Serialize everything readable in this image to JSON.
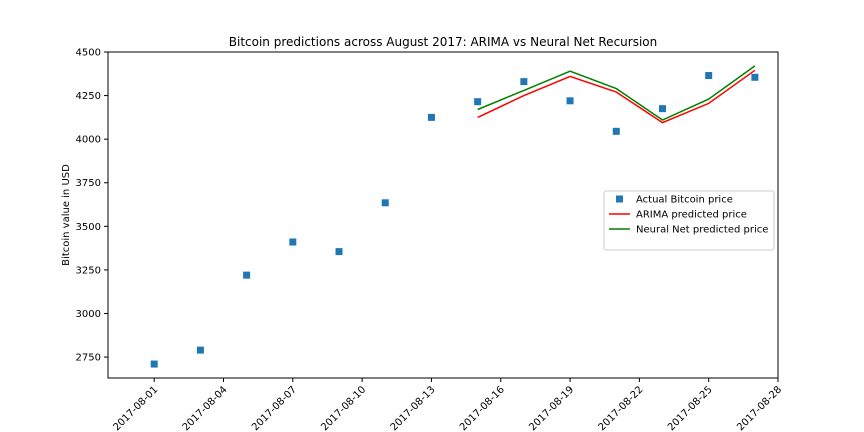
{
  "chart_data": {
    "type": "line",
    "title": "Bitcoin predictions across August 2017: ARIMA vs Neural Net Recursion",
    "xlabel": "",
    "ylabel": "Bitcoin value in USD",
    "xlim": [
      "2017-07-30",
      "2017-08-28"
    ],
    "ylim": [
      2630,
      4500
    ],
    "x_ticks": [
      "2017-08-01",
      "2017-08-04",
      "2017-08-07",
      "2017-08-10",
      "2017-08-13",
      "2017-08-16",
      "2017-08-19",
      "2017-08-22",
      "2017-08-25",
      "2017-08-28"
    ],
    "y_ticks": [
      2750,
      3000,
      3250,
      3500,
      3750,
      4000,
      4250,
      4500
    ],
    "grid": false,
    "legend_position": "center-right",
    "series": [
      {
        "name": "Actual Bitcoin price",
        "style": "marker",
        "color": "#1f77b4",
        "x": [
          "2017-08-01",
          "2017-08-03",
          "2017-08-05",
          "2017-08-07",
          "2017-08-09",
          "2017-08-11",
          "2017-08-13",
          "2017-08-15",
          "2017-08-17",
          "2017-08-19",
          "2017-08-21",
          "2017-08-23",
          "2017-08-25",
          "2017-08-27"
        ],
        "values": [
          2710,
          2790,
          3220,
          3410,
          3355,
          3635,
          4125,
          4215,
          4330,
          4220,
          4045,
          4175,
          4365,
          4355
        ]
      },
      {
        "name": "ARIMA predicted price",
        "style": "line",
        "color": "#ff0000",
        "x": [
          "2017-08-15",
          "2017-08-17",
          "2017-08-19",
          "2017-08-21",
          "2017-08-23",
          "2017-08-25",
          "2017-08-27"
        ],
        "values": [
          4125,
          4250,
          4360,
          4270,
          4095,
          4205,
          4395
        ]
      },
      {
        "name": "Neural Net predicted price",
        "style": "line",
        "color": "#008000",
        "x": [
          "2017-08-15",
          "2017-08-17",
          "2017-08-19",
          "2017-08-21",
          "2017-08-23",
          "2017-08-25",
          "2017-08-27"
        ],
        "values": [
          4170,
          4280,
          4390,
          4290,
          4110,
          4230,
          4420
        ]
      }
    ]
  }
}
